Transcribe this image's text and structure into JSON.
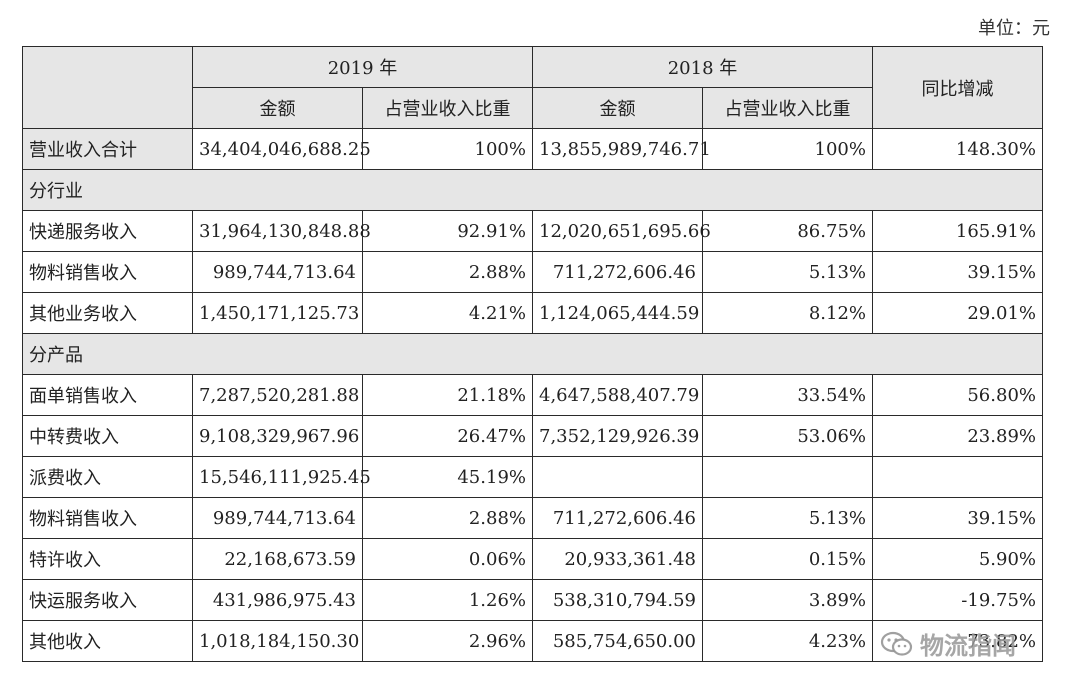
{
  "unit_note": "单位：元",
  "header": {
    "year_2019": "2019 年",
    "year_2018": "2018 年",
    "yoy_change": "同比增减",
    "amount": "金额",
    "share": "占营业收入比重"
  },
  "total_row": {
    "label": "营业收入合计",
    "amount_2019": "34,404,046,688.25",
    "share_2019": "100%",
    "amount_2018": "13,855,989,746.71",
    "share_2018": "100%",
    "yoy": "148.30%"
  },
  "sections": [
    {
      "title": "分行业",
      "rows": [
        {
          "label": "快递服务收入",
          "amount_2019": "31,964,130,848.88",
          "share_2019": "92.91%",
          "amount_2018": "12,020,651,695.66",
          "share_2018": "86.75%",
          "yoy": "165.91%"
        },
        {
          "label": "物料销售收入",
          "amount_2019": "989,744,713.64",
          "share_2019": "2.88%",
          "amount_2018": "711,272,606.46",
          "share_2018": "5.13%",
          "yoy": "39.15%"
        },
        {
          "label": "其他业务收入",
          "amount_2019": "1,450,171,125.73",
          "share_2019": "4.21%",
          "amount_2018": "1,124,065,444.59",
          "share_2018": "8.12%",
          "yoy": "29.01%"
        }
      ]
    },
    {
      "title": "分产品",
      "rows": [
        {
          "label": "面单销售收入",
          "amount_2019": "7,287,520,281.88",
          "share_2019": "21.18%",
          "amount_2018": "4,647,588,407.79",
          "share_2018": "33.54%",
          "yoy": "56.80%"
        },
        {
          "label": "中转费收入",
          "amount_2019": "9,108,329,967.96",
          "share_2019": "26.47%",
          "amount_2018": "7,352,129,926.39",
          "share_2018": "53.06%",
          "yoy": "23.89%"
        },
        {
          "label": "派费收入",
          "amount_2019": "15,546,111,925.45",
          "share_2019": "45.19%",
          "amount_2018": "",
          "share_2018": "",
          "yoy": ""
        },
        {
          "label": "物料销售收入",
          "amount_2019": "989,744,713.64",
          "share_2019": "2.88%",
          "amount_2018": "711,272,606.46",
          "share_2018": "5.13%",
          "yoy": "39.15%"
        },
        {
          "label": "特许收入",
          "amount_2019": "22,168,673.59",
          "share_2019": "0.06%",
          "amount_2018": "20,933,361.48",
          "share_2018": "0.15%",
          "yoy": "5.90%"
        },
        {
          "label": "快运服务收入",
          "amount_2019": "431,986,975.43",
          "share_2019": "1.26%",
          "amount_2018": "538,310,794.59",
          "share_2018": "3.89%",
          "yoy": "-19.75%"
        },
        {
          "label": "其他收入",
          "amount_2019": "1,018,184,150.30",
          "share_2019": "2.96%",
          "amount_2018": "585,754,650.00",
          "share_2018": "4.23%",
          "yoy": "73.82%"
        }
      ]
    }
  ],
  "watermark": {
    "icon": "wechat-icon",
    "text": "物流指闻"
  }
}
